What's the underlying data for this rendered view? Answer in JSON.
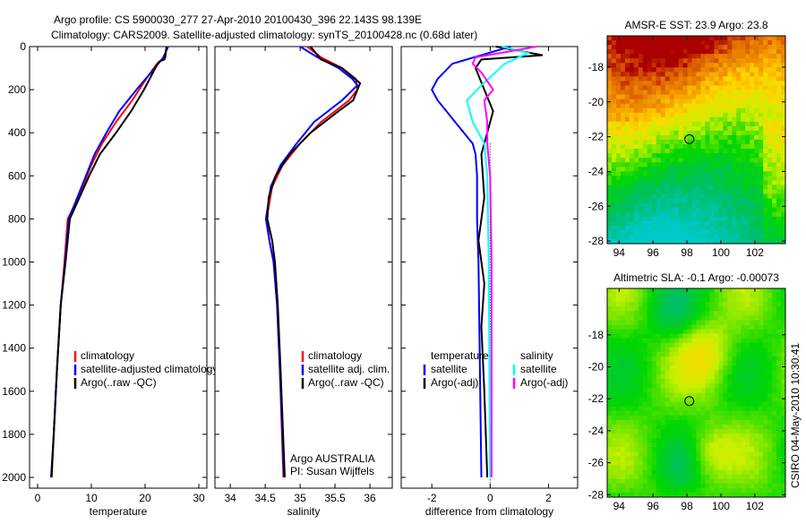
{
  "title_line1": "Argo profile: CS 5900030_277 27-Apr-2010 20100430_396 22.143S 98.139E",
  "title_line2": "Climatology: CARS2009. Satellite-adjusted climatology: synTS_20100428.nc (0.68d later)",
  "footer_vertical": "CSIRO 04-May-2010 10:30:41",
  "colors": {
    "climatology": "#ff0000",
    "satellite": "#0000ff",
    "argo": "#000000",
    "sal_satellite": "#00ffff",
    "sal_argo": "#ff00ff"
  },
  "chart_data": [
    {
      "type": "line",
      "id": "temperature",
      "xlabel": "temperature",
      "ylabel": "",
      "xlim": [
        -1.5,
        31.5
      ],
      "ylim": [
        0,
        2050
      ],
      "y_reversed": true,
      "xticks": [
        0,
        10,
        20,
        30
      ],
      "yticks": [
        0,
        200,
        400,
        600,
        800,
        1000,
        1200,
        1400,
        1600,
        1800,
        2000
      ],
      "legend": [
        "climatology",
        "satellite-adjusted climatology",
        "Argo(..raw -QC)"
      ],
      "series": [
        {
          "name": "climatology",
          "color": "#ff0000",
          "points": [
            [
              0,
              24
            ],
            [
              50,
              23.8
            ],
            [
              80,
              22.2
            ],
            [
              150,
              20.2
            ],
            [
              250,
              17.6
            ],
            [
              350,
              14.6
            ],
            [
              450,
              12
            ],
            [
              550,
              10
            ],
            [
              700,
              7.6
            ],
            [
              800,
              5.6
            ],
            [
              1000,
              5
            ],
            [
              1200,
              4.3
            ],
            [
              1500,
              3.6
            ],
            [
              1800,
              3
            ],
            [
              2000,
              2.6
            ]
          ]
        },
        {
          "name": "satellite-adjusted climatology",
          "color": "#0000ff",
          "points": [
            [
              0,
              24.3
            ],
            [
              50,
              23.4
            ],
            [
              100,
              21.8
            ],
            [
              200,
              18.4
            ],
            [
              300,
              15.2
            ],
            [
              400,
              12.8
            ],
            [
              500,
              10.6
            ],
            [
              600,
              9
            ],
            [
              800,
              5.8
            ],
            [
              1000,
              5.1
            ],
            [
              1200,
              4.3
            ],
            [
              1500,
              3.6
            ],
            [
              1800,
              3
            ],
            [
              2000,
              2.5
            ]
          ]
        },
        {
          "name": "Argo(..raw -QC)",
          "color": "#000000",
          "points": [
            [
              0,
              24
            ],
            [
              60,
              23.6
            ],
            [
              70,
              22.6
            ],
            [
              100,
              21.9
            ],
            [
              200,
              19.8
            ],
            [
              300,
              17.4
            ],
            [
              400,
              14.6
            ],
            [
              500,
              11.6
            ],
            [
              600,
              9.6
            ],
            [
              800,
              6
            ],
            [
              1000,
              5.2
            ],
            [
              1200,
              4.3
            ],
            [
              1500,
              3.6
            ],
            [
              1800,
              3
            ],
            [
              2000,
              2.6
            ]
          ]
        }
      ]
    },
    {
      "type": "line",
      "id": "salinity",
      "xlabel": "salinity",
      "xlim": [
        33.78,
        36.32
      ],
      "ylim": [
        0,
        2050
      ],
      "y_reversed": true,
      "xticks": [
        34,
        34.5,
        35,
        35.5,
        36
      ],
      "yticks": [
        0,
        200,
        400,
        600,
        800,
        1000,
        1200,
        1400,
        1600,
        1800,
        2000
      ],
      "legend": [
        "climatology",
        "satellite adj. clim.",
        "Argo(..raw -QC)"
      ],
      "annotation": [
        "Argo AUSTRALIA",
        "PI: Susan Wijffels"
      ],
      "series": [
        {
          "name": "climatology",
          "color": "#ff0000",
          "points": [
            [
              0,
              35.1
            ],
            [
              50,
              35.3
            ],
            [
              100,
              35.6
            ],
            [
              150,
              35.8
            ],
            [
              200,
              35.82
            ],
            [
              250,
              35.7
            ],
            [
              350,
              35.3
            ],
            [
              450,
              35
            ],
            [
              550,
              34.75
            ],
            [
              650,
              34.6
            ],
            [
              800,
              34.52
            ],
            [
              900,
              34.56
            ],
            [
              1000,
              34.62
            ],
            [
              1200,
              34.67
            ],
            [
              1500,
              34.71
            ],
            [
              2000,
              34.76
            ]
          ]
        },
        {
          "name": "satellite adj. clim.",
          "color": "#0000ff",
          "points": [
            [
              0,
              35
            ],
            [
              50,
              35.25
            ],
            [
              100,
              35.55
            ],
            [
              150,
              35.75
            ],
            [
              180,
              35.82
            ],
            [
              250,
              35.6
            ],
            [
              350,
              35.2
            ],
            [
              450,
              34.95
            ],
            [
              550,
              34.72
            ],
            [
              650,
              34.58
            ],
            [
              800,
              34.51
            ],
            [
              900,
              34.56
            ],
            [
              1000,
              34.62
            ],
            [
              1200,
              34.67
            ],
            [
              1500,
              34.71
            ],
            [
              2000,
              34.77
            ]
          ]
        },
        {
          "name": "Argo(..raw -QC)",
          "color": "#000000",
          "points": [
            [
              0,
              35.15
            ],
            [
              60,
              35.3
            ],
            [
              100,
              35.6
            ],
            [
              170,
              35.86
            ],
            [
              250,
              35.76
            ],
            [
              300,
              35.55
            ],
            [
              400,
              35.15
            ],
            [
              500,
              34.85
            ],
            [
              600,
              34.65
            ],
            [
              700,
              34.55
            ],
            [
              800,
              34.53
            ],
            [
              900,
              34.6
            ],
            [
              1000,
              34.64
            ],
            [
              1200,
              34.68
            ],
            [
              1500,
              34.72
            ],
            [
              2000,
              34.78
            ]
          ]
        }
      ]
    },
    {
      "type": "line",
      "id": "difference",
      "xlabel": "difference from climatology",
      "xlim": [
        -3.05,
        3.0
      ],
      "ylim": [
        0,
        2050
      ],
      "y_reversed": true,
      "xticks": [
        -2,
        0,
        2
      ],
      "yticks": [
        0,
        200,
        400,
        600,
        800,
        1000,
        1200,
        1400,
        1600,
        1800,
        2000
      ],
      "legend_temperature": {
        "title": "temperature",
        "items": [
          "satellite",
          "Argo(-adj)"
        ]
      },
      "legend_salinity": {
        "title": "salinity",
        "items": [
          "satellite",
          "Argo(-adj)"
        ]
      },
      "series": [
        {
          "name": "temperature satellite",
          "color": "#0000ff",
          "points": [
            [
              0,
              0.7
            ],
            [
              40,
              -0.3
            ],
            [
              80,
              -1.3
            ],
            [
              150,
              -1.8
            ],
            [
              200,
              -2.0
            ],
            [
              250,
              -1.8
            ],
            [
              300,
              -1.5
            ],
            [
              350,
              -1.2
            ],
            [
              400,
              -0.9
            ],
            [
              450,
              -0.6
            ],
            [
              500,
              -0.5
            ],
            [
              600,
              -0.45
            ],
            [
              800,
              -0.45
            ],
            [
              1000,
              -0.4
            ],
            [
              1500,
              -0.35
            ],
            [
              2000,
              -0.3
            ]
          ]
        },
        {
          "name": "temperature Argo(-adj)",
          "color": "#000000",
          "points": [
            [
              0,
              0.2
            ],
            [
              40,
              1.8
            ],
            [
              60,
              -0.3
            ],
            [
              100,
              -0.5
            ],
            [
              200,
              -0.2
            ],
            [
              300,
              0.1
            ],
            [
              400,
              -0.1
            ],
            [
              500,
              -0.3
            ],
            [
              700,
              -0.2
            ],
            [
              900,
              -0.4
            ],
            [
              1100,
              -0.2
            ],
            [
              1300,
              -0.3
            ],
            [
              1600,
              -0.2
            ],
            [
              2000,
              -0.1
            ]
          ]
        },
        {
          "name": "salinity satellite",
          "color": "#00ffff",
          "points": [
            [
              0,
              0.4
            ],
            [
              30,
              1.3
            ],
            [
              80,
              0.5
            ],
            [
              180,
              -0.3
            ],
            [
              250,
              -0.8
            ],
            [
              350,
              -0.6
            ],
            [
              450,
              -0.2
            ],
            [
              600,
              -0.1
            ],
            [
              1000,
              -0.05
            ],
            [
              2000,
              0
            ]
          ]
        },
        {
          "name": "salinity Argo(-adj)",
          "color": "#ff00ff",
          "points": [
            [
              0,
              1.6
            ],
            [
              50,
              -0.5
            ],
            [
              80,
              -0.6
            ],
            [
              120,
              -0.3
            ],
            [
              200,
              0.1
            ],
            [
              250,
              -0.2
            ],
            [
              350,
              -0.1
            ],
            [
              450,
              -0.1
            ],
            [
              600,
              0
            ],
            [
              1000,
              0.05
            ],
            [
              2000,
              0.05
            ]
          ]
        }
      ]
    },
    {
      "type": "heatmap",
      "id": "sst-map",
      "title": "AMSR-E SST: 23.9 Argo: 23.8",
      "xlim": [
        93.3,
        103.8
      ],
      "ylim": [
        -28.15,
        -16.2
      ],
      "xticks": [
        94,
        96,
        98,
        100,
        102
      ],
      "yticks": [
        -18,
        -20,
        -22,
        -24,
        -26,
        -28
      ],
      "marker": {
        "lon": 98.139,
        "lat": -22.143
      }
    },
    {
      "type": "heatmap",
      "id": "sla-map",
      "title": "Altimetric SLA: -0.1 Argo: -0.00073",
      "xlim": [
        93.3,
        103.8
      ],
      "ylim": [
        -28.15,
        -15.1
      ],
      "xticks": [
        94,
        96,
        98,
        100,
        102
      ],
      "yticks": [
        -18,
        -20,
        -22,
        -24,
        -26,
        -28
      ],
      "marker": {
        "lon": 98.139,
        "lat": -22.143
      }
    }
  ]
}
